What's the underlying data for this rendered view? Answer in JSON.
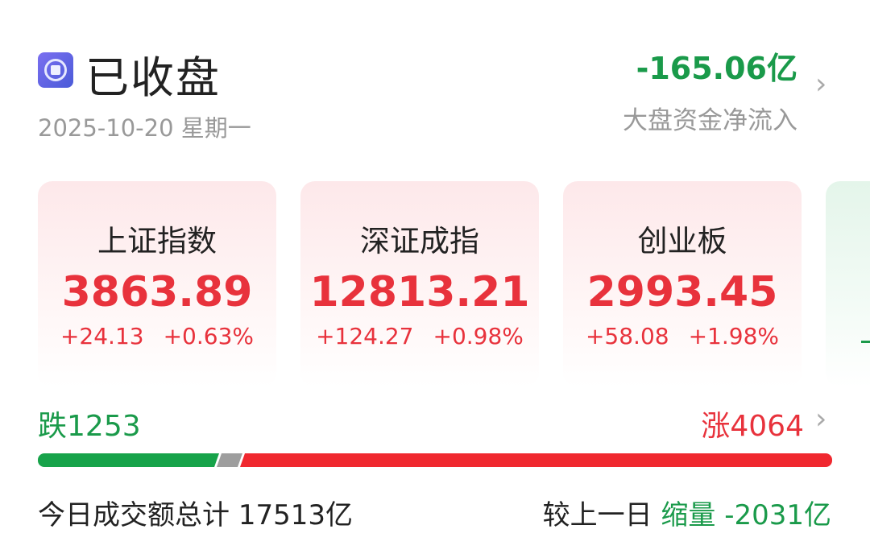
{
  "header": {
    "status": "已收盘",
    "date": "2025-10-20 星期一",
    "net_flow": "-165.06亿",
    "net_flow_label": "大盘资金净流入"
  },
  "indices": [
    {
      "name": "上证指数",
      "value": "3863.89",
      "change": "+24.13",
      "pct": "+0.63%"
    },
    {
      "name": "深证成指",
      "value": "12813.21",
      "change": "+124.27",
      "pct": "+0.98%"
    },
    {
      "name": "创业板",
      "value": "2993.45",
      "change": "+58.08",
      "pct": "+1.98%"
    }
  ],
  "breadth": {
    "fall_label": "跌",
    "fall": 1253,
    "rise_label": "涨",
    "rise": 4064
  },
  "turnover": {
    "label": "今日成交额总计",
    "value": "17513亿",
    "compare_label": "较上一日",
    "trend": "缩量",
    "delta": "-2031亿"
  },
  "colors": {
    "up": "#e8323c",
    "down": "#1a9a4a"
  }
}
